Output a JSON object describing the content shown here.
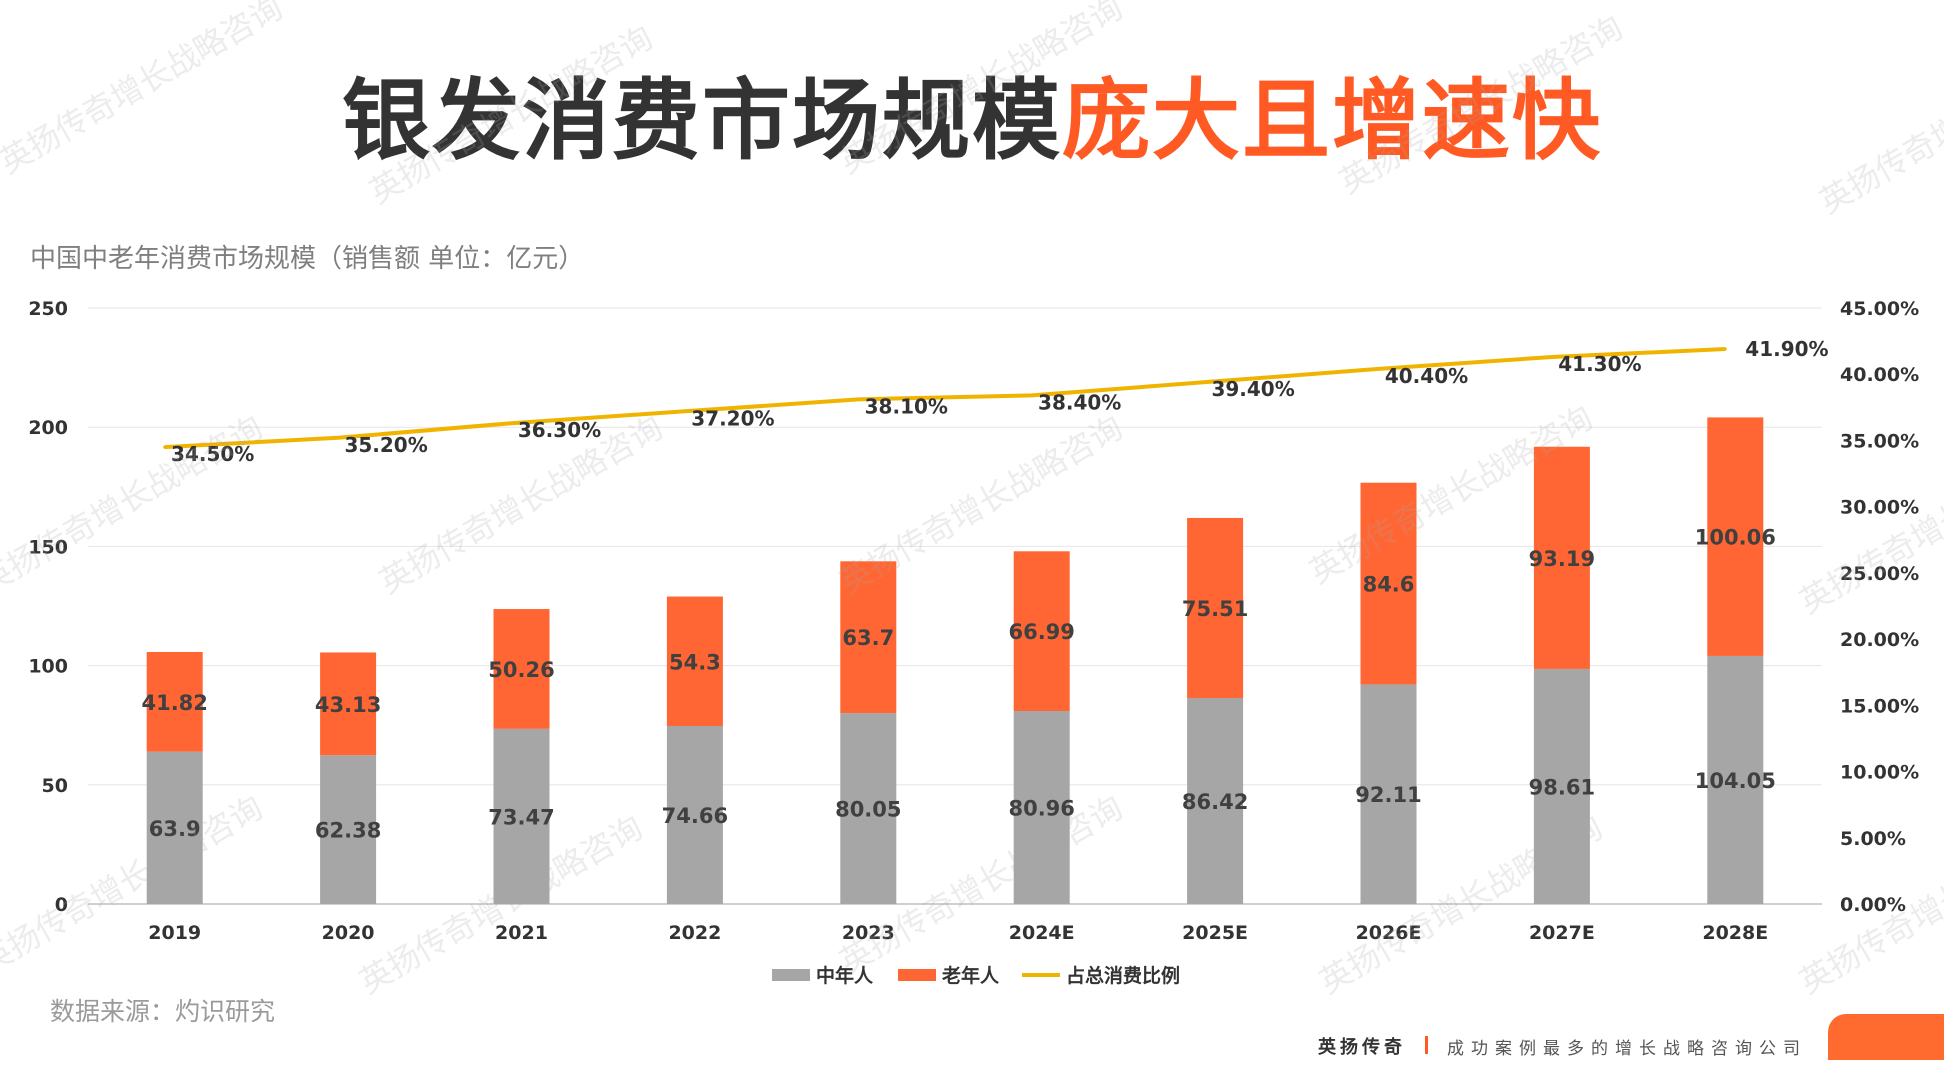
{
  "title": {
    "part1": "银发消费市场规模",
    "part2": "庞大且增速快"
  },
  "subtitle": "中国中老年消费市场规模（销售额 单位：亿元）",
  "source": "数据来源：灼识研究",
  "footer": {
    "brand": "英扬传奇",
    "slogan": "成功案例最多的增长战略咨询公司"
  },
  "watermark_text": "英扬传奇增长战略咨询",
  "colors": {
    "middle": "#a6a6a6",
    "elderly": "#ff6633",
    "ratio": "#f0b400",
    "accent": "#ff5a23"
  },
  "chart_data": {
    "type": "bar",
    "stacked": true,
    "categories": [
      "2019",
      "2020",
      "2021",
      "2022",
      "2023",
      "2024E",
      "2025E",
      "2026E",
      "2027E",
      "2028E"
    ],
    "series": [
      {
        "name": "中年人",
        "type": "bar",
        "axis": "left",
        "values": [
          63.9,
          62.38,
          73.47,
          74.66,
          80.05,
          80.96,
          86.42,
          92.11,
          98.61,
          104.05
        ]
      },
      {
        "name": "老年人",
        "type": "bar",
        "axis": "left",
        "values": [
          41.82,
          43.13,
          50.26,
          54.3,
          63.7,
          66.99,
          75.51,
          84.6,
          93.19,
          100.06
        ]
      },
      {
        "name": "占总消费比例",
        "type": "line",
        "axis": "right",
        "values": [
          34.5,
          35.2,
          36.3,
          37.2,
          38.1,
          38.4,
          39.4,
          40.4,
          41.3,
          41.9
        ]
      }
    ],
    "point_labels": [
      "34.50%",
      "35.20%",
      "36.30%",
      "37.20%",
      "38.10%",
      "38.40%",
      "39.40%",
      "40.40%",
      "41.30%",
      "41.90%"
    ],
    "ylim_left": [
      0,
      250
    ],
    "yticks_left": [
      "0",
      "50",
      "100",
      "150",
      "200",
      "250"
    ],
    "ylim_right": [
      0,
      45
    ],
    "yticks_right": [
      "0.00%",
      "5.00%",
      "10.00%",
      "15.00%",
      "20.00%",
      "25.00%",
      "30.00%",
      "35.00%",
      "40.00%",
      "45.00%"
    ],
    "grid": true,
    "legend_position": "bottom"
  }
}
